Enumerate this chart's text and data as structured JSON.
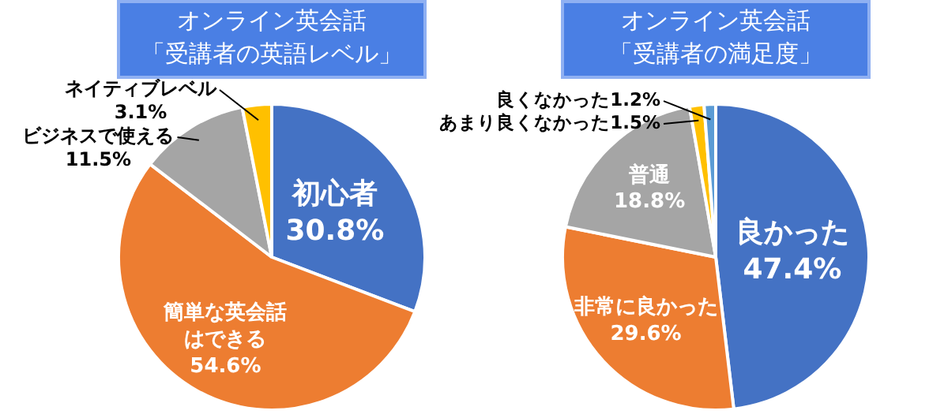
{
  "chart_data": [
    {
      "type": "pie",
      "title": "オンライン英会話「受講者の英語レベル」",
      "categories": [
        "初心者",
        "簡単な英会話はできる",
        "ビジネスで使える",
        "ネイティブレベル"
      ],
      "values": [
        30.8,
        54.6,
        11.5,
        3.1
      ],
      "colors": [
        "#4472c4",
        "#ed7d31",
        "#a5a5a5",
        "#ffc000"
      ],
      "value_labels": [
        "30.8%",
        "54.6%",
        "11.5%",
        "3.1%"
      ]
    },
    {
      "type": "pie",
      "title": "オンライン英会話「受講者の満足度」",
      "categories": [
        "良かった",
        "非常に良かった",
        "普通",
        "あまり良くなかった",
        "良くなかった"
      ],
      "values": [
        47.4,
        29.6,
        18.8,
        1.5,
        1.2
      ],
      "colors": [
        "#4472c4",
        "#ed7d31",
        "#a5a5a5",
        "#ffc000",
        "#5b9bd5"
      ],
      "value_labels": [
        "47.4%",
        "29.6%",
        "18.8%",
        "1.5%",
        "1.2%"
      ]
    }
  ]
}
